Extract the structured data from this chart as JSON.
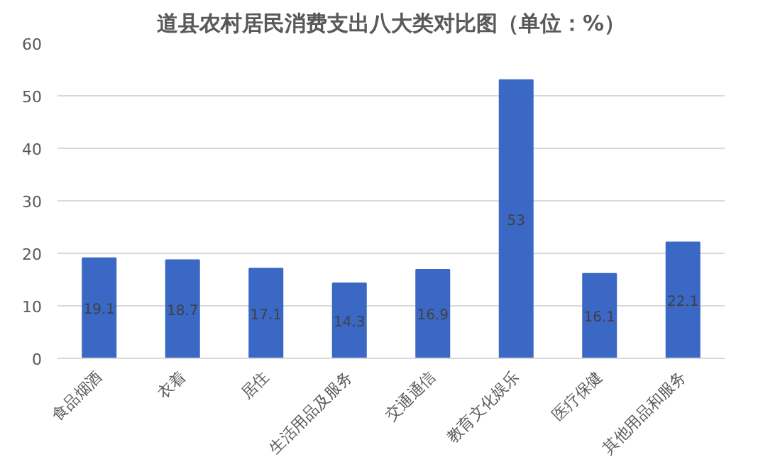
{
  "chart_data": {
    "type": "bar",
    "title": "道县农村居民消费支出八大类对比图（单位：%）",
    "categories": [
      "食品烟酒",
      "衣着",
      "居住",
      "生活用品及服务",
      "交通通信",
      "教育文化娱乐",
      "医疗保健",
      "其他用品和服务"
    ],
    "values": [
      19.1,
      18.7,
      17.1,
      14.3,
      16.9,
      53,
      16.1,
      22.1
    ],
    "color": "#3a68c4",
    "ylim": [
      0,
      60
    ],
    "yticks": [
      0,
      10,
      20,
      30,
      40,
      50,
      60
    ],
    "grid": "y",
    "data_labels": true
  }
}
